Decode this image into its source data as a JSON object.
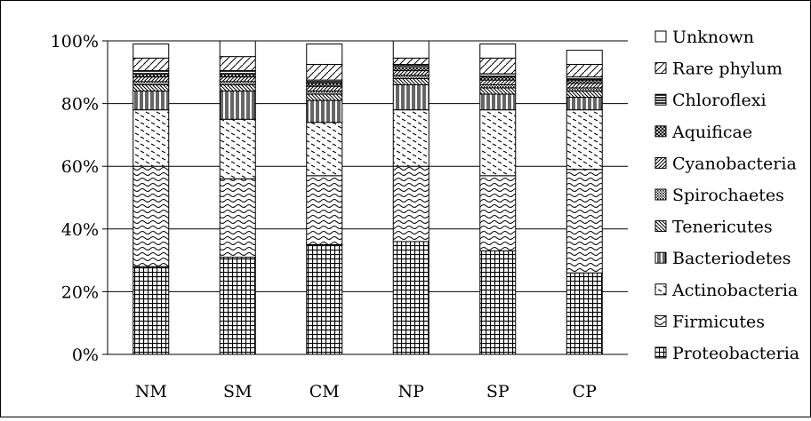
{
  "chart_data": {
    "type": "bar",
    "stacked": true,
    "percent": true,
    "categories": [
      "NM",
      "SM",
      "CM",
      "NP",
      "SP",
      "CP"
    ],
    "ylim": [
      0,
      100
    ],
    "y_ticks": [
      "0%",
      "20%",
      "40%",
      "60%",
      "80%",
      "100%"
    ],
    "grid": true,
    "legend_position": "right",
    "series": [
      {
        "name": "Proteobacteria",
        "values": [
          28,
          31,
          35,
          36,
          33,
          26
        ],
        "pattern": "grid"
      },
      {
        "name": "Firmicutes",
        "values": [
          32,
          25,
          22,
          24,
          24,
          33
        ],
        "pattern": "waves"
      },
      {
        "name": "Actinobacteria",
        "values": [
          18,
          19,
          17,
          18,
          21,
          19
        ],
        "pattern": "dashes"
      },
      {
        "name": "Bacteriodetes",
        "values": [
          6,
          9,
          7,
          8,
          5,
          4
        ],
        "pattern": "vlines"
      },
      {
        "name": "Tenericutes",
        "values": [
          2,
          2,
          2,
          2,
          2,
          2
        ],
        "pattern": "diag-back"
      },
      {
        "name": "Spirochaetes",
        "values": [
          1,
          1,
          1,
          1,
          1,
          1
        ],
        "pattern": "dots"
      },
      {
        "name": "Cyanobacteria",
        "values": [
          1.5,
          1.5,
          1.5,
          1.5,
          1.5,
          1.5
        ],
        "pattern": "diag-fwd"
      },
      {
        "name": "Aquificae",
        "values": [
          1,
          1,
          1,
          1,
          1,
          1
        ],
        "pattern": "cross"
      },
      {
        "name": "Chloroflexi",
        "values": [
          1,
          1,
          1,
          1,
          1,
          1
        ],
        "pattern": "hlines"
      },
      {
        "name": "Rare phylum",
        "values": [
          4,
          4.5,
          5,
          2,
          5,
          4
        ],
        "pattern": "diag-sparse"
      },
      {
        "name": "Unknown",
        "values": [
          4.5,
          5,
          6.5,
          5.5,
          4.5,
          4.5
        ],
        "pattern": "none"
      }
    ]
  },
  "colors": {
    "ink": "#000000",
    "background": "#ffffff"
  }
}
